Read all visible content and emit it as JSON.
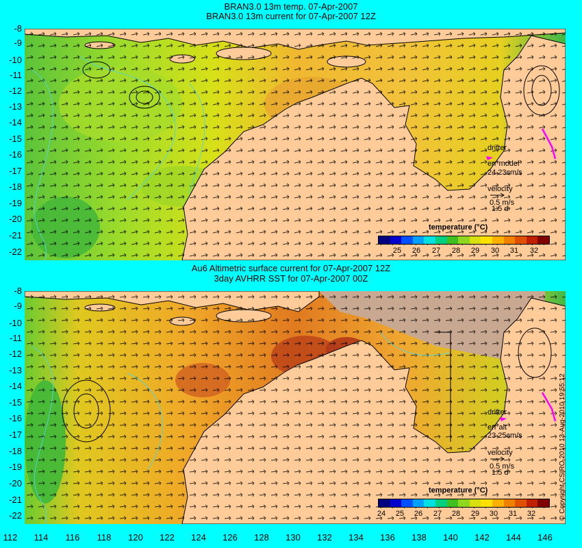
{
  "top_panel": {
    "title_line1": "BRAN3.0 13m temp. 07-Apr-2007",
    "title_line2": "BRAN3.0 13m current for 07-Apr-2007 12Z",
    "drifter_label": "drifter",
    "err_label": "err model",
    "err_values": "24 23cm/s",
    "velocity_label": "velocity",
    "velocity_scale": "0.5 m/s",
    "velocity_days": "1.5 d",
    "colorbar_title": "temperature (°C)",
    "colorbar_ticks": [
      "25",
      "26",
      "27",
      "28",
      "29",
      "30",
      "31",
      "32"
    ]
  },
  "bottom_panel": {
    "title_line1": "Au6 Altimetric surface current for 07-Apr-2007 12Z",
    "title_line2": "3day AVHRR SST for 07-Apr-2007 00Z",
    "drifter_label": "drifter",
    "err_label": "err alt",
    "err_values": "23 25cm/s",
    "velocity_label": "velocity",
    "velocity_scale": "0.5 m/s",
    "velocity_days": "1.5 d",
    "colorbar_title": "temperature (°C)",
    "colorbar_ticks": [
      "24",
      "25",
      "26",
      "27",
      "28",
      "29",
      "30",
      "31",
      "32"
    ]
  },
  "y_axis_labels": [
    "-8",
    "-9",
    "-10",
    "-11",
    "-12",
    "-13",
    "-14",
    "-15",
    "-16",
    "-17",
    "-18",
    "-19",
    "-20",
    "-21",
    "-22"
  ],
  "x_axis_labels": [
    "112",
    "114",
    "116",
    "118",
    "120",
    "122",
    "124",
    "126",
    "128",
    "130",
    "132",
    "134",
    "136",
    "138",
    "140",
    "142",
    "144",
    "146"
  ],
  "copyright": "© Copyright CSIRO 2010  13-Aug-2010 19:55:12",
  "colors": {
    "background": "#00ffff",
    "land": "#ffcc99",
    "cloud": "#c8a890",
    "ocean_warm": "#e8962a",
    "ocean_cool": "#7fd22a",
    "contour": "#4fd6e0",
    "drifter": "#ff00ff"
  },
  "colorbar_colors": [
    "#000080",
    "#0000cc",
    "#0050ff",
    "#00a0ff",
    "#00e0e0",
    "#00d080",
    "#40c020",
    "#90d820",
    "#d8e010",
    "#ffe000",
    "#ffb000",
    "#f08000",
    "#e05000",
    "#c02000",
    "#800000"
  ]
}
